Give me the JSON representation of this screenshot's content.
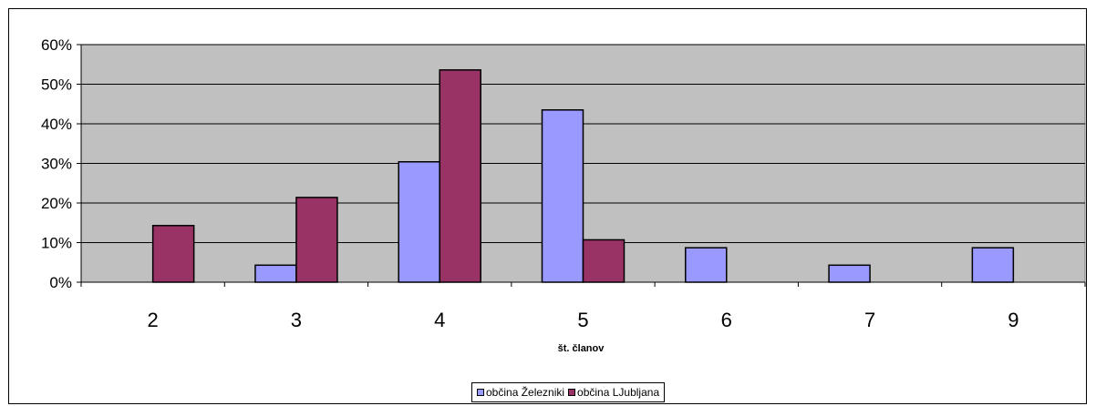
{
  "chart_data": {
    "type": "bar",
    "categories": [
      "2",
      "3",
      "4",
      "5",
      "6",
      "7",
      "9"
    ],
    "series": [
      {
        "name": "občina Železniki",
        "color": "#9999ff",
        "values": [
          0,
          4.3,
          30.4,
          43.5,
          8.7,
          4.3,
          8.7
        ]
      },
      {
        "name": "občina LJubljana",
        "color": "#993366",
        "values": [
          14.3,
          21.4,
          53.6,
          10.7,
          0,
          0,
          0
        ]
      }
    ],
    "xlabel": "št. članov",
    "ylabel": "",
    "ylim": [
      0,
      60
    ],
    "yticks": [
      "0%",
      "10%",
      "20%",
      "30%",
      "40%",
      "50%",
      "60%"
    ],
    "grid": true,
    "plot_background": "#c0c0c0",
    "legend_position": "bottom"
  }
}
